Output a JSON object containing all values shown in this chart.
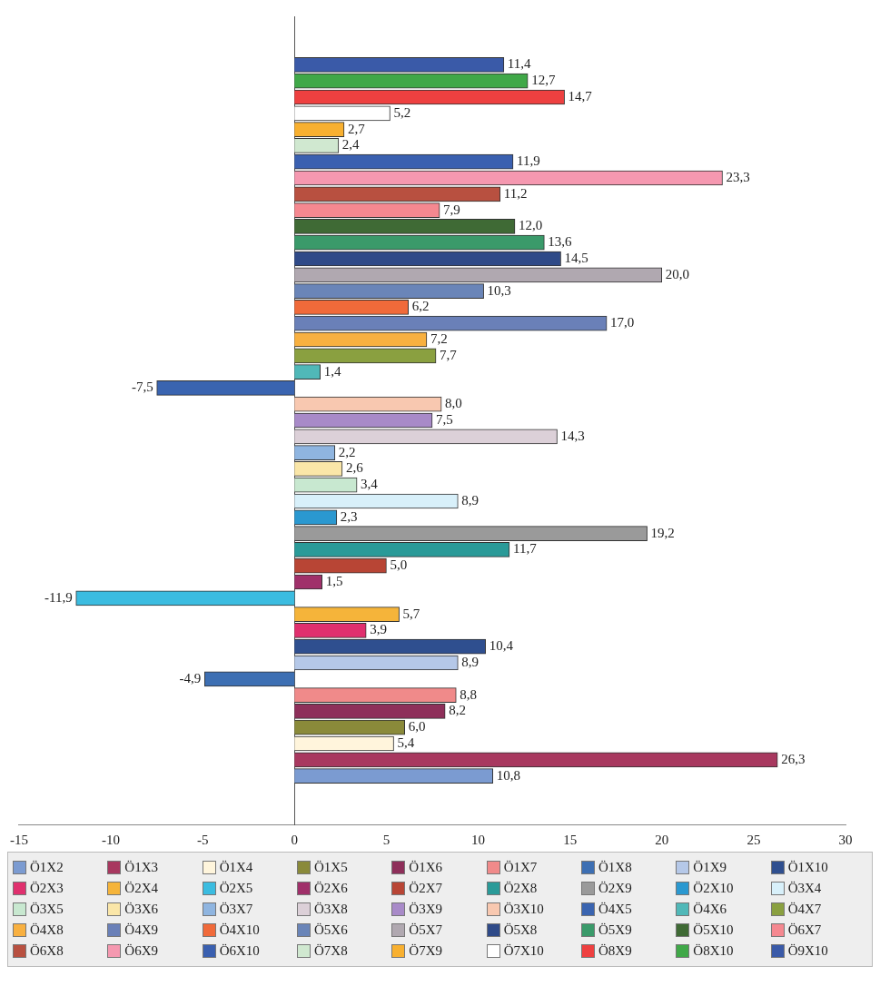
{
  "chart_data": {
    "type": "bar",
    "orientation": "horizontal",
    "xlim": [
      -15,
      30
    ],
    "xticks": [
      -15,
      -10,
      -5,
      0,
      5,
      10,
      15,
      20,
      25,
      30
    ],
    "legend": "bottom",
    "series": [
      {
        "name": "Ö1X2",
        "color": "#7b9bd1",
        "values": [
          10.8
        ],
        "value_labels": [
          "10,8"
        ]
      },
      {
        "name": "Ö1X3",
        "color": "#a8385f",
        "values": [
          26.3
        ],
        "value_labels": [
          "26,3"
        ]
      },
      {
        "name": "Ö1X4",
        "color": "#fff5dc",
        "values": [
          5.4
        ],
        "value_labels": [
          "5,4"
        ]
      },
      {
        "name": "Ö1X5",
        "color": "#8a8a3a",
        "values": [
          6.0
        ],
        "value_labels": [
          "6,0"
        ]
      },
      {
        "name": "Ö1X6",
        "color": "#8e2f5a",
        "values": [
          8.2
        ],
        "value_labels": [
          "8,2"
        ]
      },
      {
        "name": "Ö1X7",
        "color": "#f08a8a",
        "values": [
          8.8
        ],
        "value_labels": [
          "8,8"
        ]
      },
      {
        "name": "Ö1X8",
        "color": "#3d6fb3",
        "values": [
          -4.9
        ],
        "value_labels": [
          "-4,9"
        ]
      },
      {
        "name": "Ö1X9",
        "color": "#b5c8e8",
        "values": [
          8.9
        ],
        "value_labels": [
          "8,9"
        ]
      },
      {
        "name": "Ö1X10",
        "color": "#2f4f8f",
        "values": [
          10.4
        ],
        "value_labels": [
          "10,4"
        ]
      },
      {
        "name": "Ö2X3",
        "color": "#e0306e",
        "values": [
          3.9
        ],
        "value_labels": [
          "3,9"
        ]
      },
      {
        "name": "Ö2X4",
        "color": "#f5b43a",
        "values": [
          5.7
        ],
        "value_labels": [
          "5,7"
        ]
      },
      {
        "name": "Ö2X5",
        "color": "#3bbce0",
        "values": [
          -11.9
        ],
        "value_labels": [
          "-11,9"
        ]
      },
      {
        "name": "Ö2X6",
        "color": "#a0306a",
        "values": [
          1.5
        ],
        "value_labels": [
          "1,5"
        ]
      },
      {
        "name": "Ö2X7",
        "color": "#b84535",
        "values": [
          5.0
        ],
        "value_labels": [
          "5,0"
        ]
      },
      {
        "name": "Ö2X8",
        "color": "#2a9a98",
        "values": [
          11.7
        ],
        "value_labels": [
          "11,7"
        ]
      },
      {
        "name": "Ö2X9",
        "color": "#9a9a9a",
        "values": [
          19.2
        ],
        "value_labels": [
          "19,2"
        ]
      },
      {
        "name": "Ö2X10",
        "color": "#2a98d0",
        "values": [
          2.3
        ],
        "value_labels": [
          "2,3"
        ]
      },
      {
        "name": "Ö3X4",
        "color": "#d8f0fa",
        "values": [
          8.9
        ],
        "value_labels": [
          "8,9"
        ]
      },
      {
        "name": "Ö3X5",
        "color": "#c8e8d0",
        "values": [
          3.4
        ],
        "value_labels": [
          "3,4"
        ]
      },
      {
        "name": "Ö3X6",
        "color": "#fae6a8",
        "values": [
          2.6
        ],
        "value_labels": [
          "2,6"
        ]
      },
      {
        "name": "Ö3X7",
        "color": "#8fb5e0",
        "values": [
          2.2
        ],
        "value_labels": [
          "2,2"
        ]
      },
      {
        "name": "Ö3X8",
        "color": "#dcd0d8",
        "values": [
          14.3
        ],
        "value_labels": [
          "14,3"
        ]
      },
      {
        "name": "Ö3X9",
        "color": "#a88ac8",
        "values": [
          7.5
        ],
        "value_labels": [
          "7,5"
        ]
      },
      {
        "name": "Ö3X10",
        "color": "#f8c8b0",
        "values": [
          8.0
        ],
        "value_labels": [
          "8,0"
        ]
      },
      {
        "name": "Ö4X5",
        "color": "#3a64b0",
        "values": [
          -7.5
        ],
        "value_labels": [
          "-7,5"
        ]
      },
      {
        "name": "Ö4X6",
        "color": "#50b8b8",
        "values": [
          1.4
        ],
        "value_labels": [
          "1,4"
        ]
      },
      {
        "name": "Ö4X7",
        "color": "#8aa040",
        "values": [
          7.7
        ],
        "value_labels": [
          "7,7"
        ]
      },
      {
        "name": "Ö4X8",
        "color": "#f8b040",
        "values": [
          7.2
        ],
        "value_labels": [
          "7,2"
        ]
      },
      {
        "name": "Ö4X9",
        "color": "#6a80b8",
        "values": [
          17.0
        ],
        "value_labels": [
          "17,0"
        ]
      },
      {
        "name": "Ö4X10",
        "color": "#f06a3a",
        "values": [
          6.2
        ],
        "value_labels": [
          "6,2"
        ]
      },
      {
        "name": "Ö5X6",
        "color": "#6a85b8",
        "values": [
          10.3
        ],
        "value_labels": [
          "10,3"
        ]
      },
      {
        "name": "Ö5X7",
        "color": "#b0a8b0",
        "values": [
          20.0
        ],
        "value_labels": [
          "20,0"
        ]
      },
      {
        "name": "Ö5X8",
        "color": "#2f4a88",
        "values": [
          14.5
        ],
        "value_labels": [
          "14,5"
        ]
      },
      {
        "name": "Ö5X9",
        "color": "#3a9a6a",
        "values": [
          13.6
        ],
        "value_labels": [
          "13,6"
        ]
      },
      {
        "name": "Ö5X10",
        "color": "#3f6a35",
        "values": [
          12.0
        ],
        "value_labels": [
          "12,0"
        ]
      },
      {
        "name": "Ö6X7",
        "color": "#f58890",
        "values": [
          7.9
        ],
        "value_labels": [
          "7,9"
        ]
      },
      {
        "name": "Ö6X8",
        "color": "#b85040",
        "values": [
          11.2
        ],
        "value_labels": [
          "11,2"
        ]
      },
      {
        "name": "Ö6X9",
        "color": "#f598b0",
        "values": [
          23.3
        ],
        "value_labels": [
          "23,3"
        ]
      },
      {
        "name": "Ö6X10",
        "color": "#3a60b0",
        "values": [
          11.9
        ],
        "value_labels": [
          "11,9"
        ]
      },
      {
        "name": "Ö7X8",
        "color": "#d0e8d0",
        "values": [
          2.4
        ],
        "value_labels": [
          "2,4"
        ]
      },
      {
        "name": "Ö7X9",
        "color": "#f8b030",
        "values": [
          2.7
        ],
        "value_labels": [
          "2,7"
        ]
      },
      {
        "name": "Ö7X10",
        "color": "#ffffff",
        "values": [
          5.2
        ],
        "value_labels": [
          "5,2"
        ]
      },
      {
        "name": "Ö8X9",
        "color": "#ee4040",
        "values": [
          14.7
        ],
        "value_labels": [
          "14,7"
        ]
      },
      {
        "name": "Ö8X10",
        "color": "#40a848",
        "values": [
          12.7
        ],
        "value_labels": [
          "12,7"
        ]
      },
      {
        "name": "Ö9X10",
        "color": "#3a5aa8",
        "values": [
          11.4
        ],
        "value_labels": [
          "11,4"
        ]
      }
    ]
  }
}
